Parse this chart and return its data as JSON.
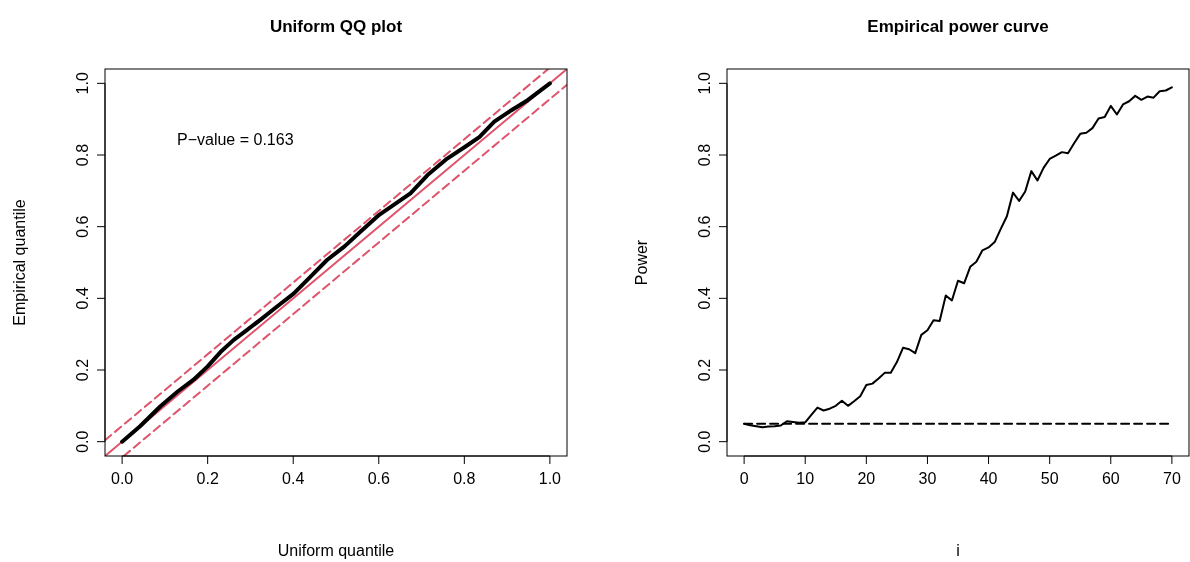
{
  "chart_data": [
    {
      "type": "line",
      "title": "Uniform QQ plot",
      "xlabel": "Uniform quantile",
      "ylabel": "Empirical quantile",
      "xlim": [
        -0.04,
        1.04
      ],
      "ylim": [
        -0.04,
        1.04
      ],
      "xticks": [
        {
          "value": 0,
          "label": "0.0"
        },
        {
          "value": 0.2,
          "label": "0.2"
        },
        {
          "value": 0.4,
          "label": "0.4"
        },
        {
          "value": 0.6,
          "label": "0.6"
        },
        {
          "value": 0.8,
          "label": "0.8"
        },
        {
          "value": 1,
          "label": "1.0"
        }
      ],
      "yticks": [
        {
          "value": 0,
          "label": "0.0"
        },
        {
          "value": 0.2,
          "label": "0.2"
        },
        {
          "value": 0.4,
          "label": "0.4"
        },
        {
          "value": 0.6,
          "label": "0.6"
        },
        {
          "value": 0.8,
          "label": "0.8"
        },
        {
          "value": 1,
          "label": "1.0"
        }
      ],
      "annotations": [
        "P−value = 0.163"
      ],
      "series": [
        {
          "type": "line",
          "color": "#df536b",
          "line_style": "solid",
          "x": [
            -0.04,
            1.04
          ],
          "values": [
            -0.04,
            1.04
          ]
        },
        {
          "type": "line",
          "color": "#df536b",
          "line_style": "dashed",
          "x": [
            -0.04,
            0.996
          ],
          "values": [
            0.004,
            1.04
          ]
        },
        {
          "type": "line",
          "color": "#df536b",
          "line_style": "dashed",
          "x": [
            0.004,
            1.04
          ],
          "values": [
            -0.04,
            0.996
          ]
        },
        {
          "type": "line",
          "color": "#000000",
          "line_style": "solid",
          "x": [
            0,
            0.042,
            0.089,
            0.13,
            0.167,
            0.2,
            0.23,
            0.261,
            0.29,
            0.323,
            0.36,
            0.401,
            0.44,
            0.479,
            0.52,
            0.557,
            0.601,
            0.64,
            0.674,
            0.714,
            0.76,
            0.802,
            0.835,
            0.87,
            0.91,
            0.948,
            1.0
          ],
          "values": [
            0,
            0.043,
            0.098,
            0.14,
            0.173,
            0.21,
            0.25,
            0.284,
            0.31,
            0.34,
            0.375,
            0.413,
            0.46,
            0.507,
            0.545,
            0.586,
            0.633,
            0.665,
            0.693,
            0.744,
            0.79,
            0.823,
            0.85,
            0.893,
            0.925,
            0.953,
            1.0
          ]
        }
      ]
    },
    {
      "type": "line",
      "title": "Empirical power curve",
      "xlabel": "i",
      "ylabel": "Power",
      "xlim": [
        -2.8,
        72.8
      ],
      "ylim": [
        -0.04,
        1.04
      ],
      "xticks": [
        0,
        10,
        20,
        30,
        40,
        50,
        60,
        70
      ],
      "yticks": [
        {
          "value": 0,
          "label": "0.0"
        },
        {
          "value": 0.2,
          "label": "0.2"
        },
        {
          "value": 0.4,
          "label": "0.4"
        },
        {
          "value": 0.6,
          "label": "0.6"
        },
        {
          "value": 0.8,
          "label": "0.8"
        },
        {
          "value": 1,
          "label": "1.0"
        }
      ],
      "series": [
        {
          "type": "line",
          "color": "#000000",
          "line_style": "solid",
          "x": [
            0,
            1,
            2,
            3,
            4,
            5,
            6,
            7,
            8,
            9,
            10,
            11,
            12,
            13,
            14,
            15,
            16,
            17,
            18,
            19,
            20,
            21,
            22,
            23,
            24,
            25,
            26,
            27,
            28,
            29,
            30,
            31,
            32,
            33,
            34,
            35,
            36,
            37,
            38,
            39,
            40,
            41,
            42,
            43,
            44,
            45,
            46,
            47,
            48,
            49,
            50,
            51,
            52,
            53,
            54,
            55,
            56,
            57,
            58,
            59,
            60,
            61,
            62,
            63,
            64,
            65,
            66,
            67,
            68,
            69,
            70
          ],
          "values": [
            0.05,
            0.046,
            0.043,
            0.04,
            0.042,
            0.043,
            0.045,
            0.057,
            0.055,
            0.053,
            0.054,
            0.075,
            0.095,
            0.087,
            0.092,
            0.1,
            0.114,
            0.1,
            0.113,
            0.127,
            0.158,
            0.162,
            0.176,
            0.192,
            0.192,
            0.222,
            0.262,
            0.258,
            0.247,
            0.298,
            0.311,
            0.339,
            0.337,
            0.408,
            0.394,
            0.449,
            0.442,
            0.488,
            0.502,
            0.534,
            0.542,
            0.557,
            0.594,
            0.629,
            0.695,
            0.672,
            0.698,
            0.755,
            0.729,
            0.764,
            0.789,
            0.798,
            0.808,
            0.805,
            0.833,
            0.859,
            0.862,
            0.875,
            0.902,
            0.906,
            0.937,
            0.913,
            0.941,
            0.95,
            0.965,
            0.954,
            0.963,
            0.96,
            0.978,
            0.98,
            0.989
          ]
        },
        {
          "type": "line",
          "color": "#000000",
          "line_style": "dashed",
          "x": [
            0,
            70
          ],
          "values": [
            0.05,
            0.05
          ]
        }
      ]
    }
  ]
}
